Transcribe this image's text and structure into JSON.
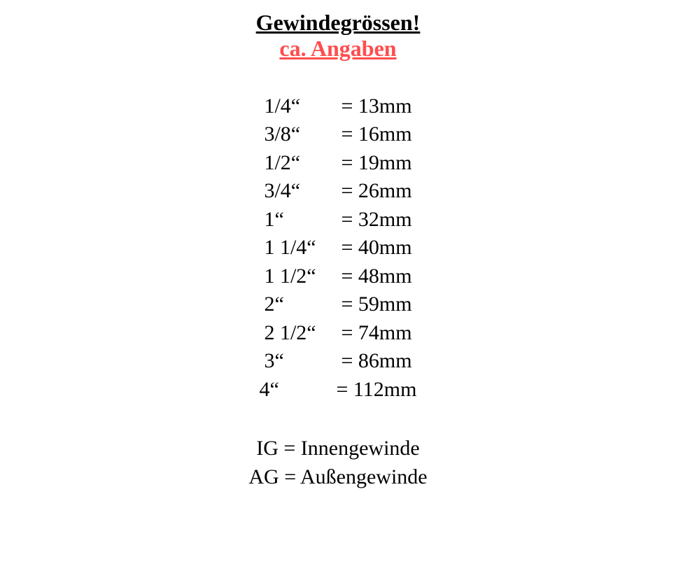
{
  "header": {
    "title": "Gewindegrössen!",
    "subtitle": "ca. Angaben",
    "title_color": "#000000",
    "subtitle_color": "#ff4d4d",
    "title_fontsize": 32,
    "subtitle_fontsize": 32
  },
  "table": {
    "type": "table",
    "font_color": "#000000",
    "fontsize": 30,
    "rows": [
      {
        "label": "1/4“",
        "value": "= 13mm"
      },
      {
        "label": "3/8“",
        "value": "= 16mm"
      },
      {
        "label": "1/2“",
        "value": "= 19mm"
      },
      {
        "label": "3/4“",
        "value": "= 26mm"
      },
      {
        "label": "1“",
        "value": "= 32mm"
      },
      {
        "label": "1 1/4“",
        "value": "= 40mm"
      },
      {
        "label": "1 1/2“",
        "value": "= 48mm"
      },
      {
        "label": "2“",
        "value": "= 59mm"
      },
      {
        "label": "2 1/2“",
        "value": "= 74mm"
      },
      {
        "label": "3“",
        "value": "= 86mm"
      },
      {
        "label": "4“",
        "value": "= 112mm"
      }
    ]
  },
  "legend": {
    "font_color": "#000000",
    "fontsize": 30,
    "items": [
      "IG = Innengewinde",
      "AG = Außengewinde"
    ]
  },
  "background_color": "#ffffff"
}
